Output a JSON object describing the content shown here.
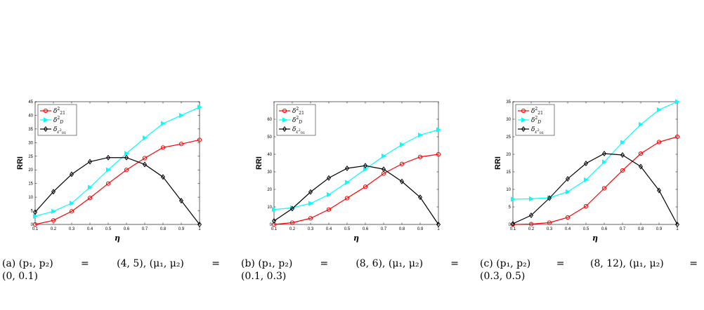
{
  "chart_data": [
    {
      "type": "line",
      "xlabel": "η",
      "ylabel": "RRI",
      "x": [
        0.1,
        0.2,
        0.3,
        0.4,
        0.5,
        0.6,
        0.7,
        0.8,
        0.9,
        1
      ],
      "x_ticks": [
        "0.1",
        "0.2",
        "0.3",
        "0.4",
        "0.5",
        "0.6",
        "0.7",
        "0.8",
        "0.9",
        "1"
      ],
      "ylim": [
        0,
        45
      ],
      "y_ticks": [
        "0",
        "5",
        "10",
        "15",
        "20",
        "25",
        "30",
        "35",
        "40",
        "45"
      ],
      "legend_position": "top-left",
      "series": [
        {
          "name": "δ²₂₁",
          "color": "#ff0000",
          "marker": "circle",
          "values": [
            0,
            1.5,
            4.8,
            9.7,
            15,
            20,
            24.3,
            28.2,
            29.5,
            31
          ]
        },
        {
          "name": "δ²_D",
          "color": "#00ffff",
          "marker": "triangle-right",
          "values": [
            3,
            4.8,
            7.8,
            13.6,
            20,
            26,
            31.7,
            37,
            40,
            43
          ]
        },
        {
          "name": "δ_{ε²₀₁}",
          "color": "#000000",
          "marker": "diamond",
          "values": [
            4.5,
            12,
            18.4,
            23,
            24.5,
            24.5,
            22,
            17.4,
            8.7,
            0
          ]
        }
      ]
    },
    {
      "type": "line",
      "xlabel": "η",
      "ylabel": "RRI",
      "x": [
        0.1,
        0.2,
        0.3,
        0.4,
        0.5,
        0.6,
        0.7,
        0.8,
        0.9,
        1
      ],
      "x_ticks": [
        "0.1",
        "0.2",
        "0.3",
        "0.4",
        "0.5",
        "0.6",
        "0.7",
        "0.8",
        "0.9",
        "1"
      ],
      "ylim": [
        0,
        70
      ],
      "y_ticks": [
        "0",
        "10",
        "20",
        "30",
        "40",
        "50",
        "60"
      ],
      "legend_position": "top-left",
      "series": [
        {
          "name": "δ²₂₁",
          "color": "#ff0000",
          "marker": "circle",
          "values": [
            0,
            1,
            3.5,
            8.5,
            15,
            21.5,
            29,
            34.5,
            38.5,
            40
          ]
        },
        {
          "name": "δ²_D",
          "color": "#00ffff",
          "marker": "triangle-right",
          "values": [
            8.5,
            9.5,
            12,
            17,
            24,
            31.5,
            39,
            45.5,
            51,
            54
          ]
        },
        {
          "name": "δ_{ε²₀₁}",
          "color": "#000000",
          "marker": "diamond",
          "values": [
            2,
            9,
            18.5,
            26.5,
            32,
            33.5,
            31.5,
            24.5,
            15.5,
            0
          ]
        }
      ]
    },
    {
      "type": "line",
      "xlabel": "η",
      "ylabel": "RRI",
      "x": [
        0.1,
        0.2,
        0.3,
        0.4,
        0.5,
        0.6,
        0.7,
        0.8,
        0.9,
        1
      ],
      "x_ticks": [
        "0.1",
        "0.2",
        "0.3",
        "0.4",
        "0.5",
        "0.6",
        "0.7",
        "0.8",
        "0.9",
        "1"
      ],
      "ylim": [
        0,
        35
      ],
      "y_ticks": [
        "0",
        "5",
        "10",
        "15",
        "20",
        "25",
        "30",
        "35"
      ],
      "legend_position": "top-left",
      "series": [
        {
          "name": "δ²₂₁",
          "color": "#ff0000",
          "marker": "circle",
          "values": [
            0,
            0.1,
            0.5,
            2,
            5.2,
            10.3,
            15.4,
            20.2,
            23.5,
            25
          ]
        },
        {
          "name": "δ²_D",
          "color": "#00ffff",
          "marker": "triangle-right",
          "values": [
            7.2,
            7.3,
            7.6,
            9.3,
            12.7,
            17.8,
            23.4,
            28.5,
            32.7,
            35
          ]
        },
        {
          "name": "δ_{ε²₀₁}",
          "color": "#000000",
          "marker": "diamond",
          "values": [
            0.2,
            2.6,
            7.5,
            13,
            17.4,
            20.2,
            19.8,
            16.5,
            9.7,
            0
          ]
        }
      ]
    }
  ],
  "captions": [
    {
      "label": "(a)",
      "p": "(p₁, p₂)",
      "eq1": "=",
      "pv": "(4, 5), (μ₁, μ₂)",
      "eq2": "=",
      "mv": "(0, 0.1)"
    },
    {
      "label": "(b)",
      "p": "(p₁, p₂)",
      "eq1": "=",
      "pv": "(8, 6), (μ₁, μ₂)",
      "eq2": "=",
      "mv": "(0.1, 0.3)"
    },
    {
      "label": "(c)",
      "p": "(p₁, p₂)",
      "eq1": "=",
      "pv": "(8, 12), (μ₁, μ₂)",
      "eq2": "=",
      "mv": "(0.3, 0.5)"
    }
  ]
}
